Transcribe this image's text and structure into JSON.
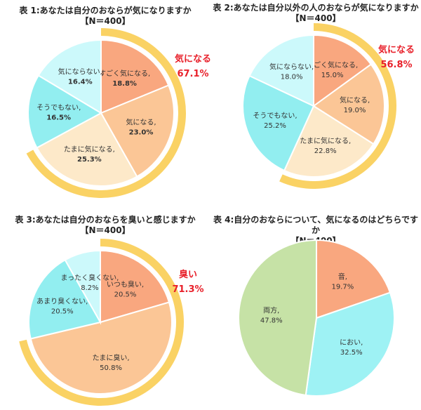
{
  "colors": {
    "ring": "#FAD264",
    "highlight_text": "#E8202A",
    "label_text": "#333333"
  },
  "chart_data": [
    {
      "type": "pie",
      "title": "表 1:あなたは自分のおならが気になりますか",
      "subtitle": "【N＝400】",
      "slices": [
        {
          "label": "すごく気になる",
          "value": 18.8,
          "color": "#F9A77F"
        },
        {
          "label": "気になる",
          "value": 23.0,
          "color": "#FBC696"
        },
        {
          "label": "たまに気になる",
          "value": 25.3,
          "color": "#FDE9C9"
        },
        {
          "label": "そうでもない",
          "value": 16.5,
          "color": "#92EEF0"
        },
        {
          "label": "気にならない",
          "value": 16.4,
          "color": "#CCF9FB"
        }
      ],
      "highlight": {
        "label": "気になる",
        "value": "67.1%"
      }
    },
    {
      "type": "pie",
      "title": "表 2:あなたは自分以外の人のおならが気になりますか",
      "subtitle": "【N＝400】",
      "slices": [
        {
          "label": "すごく気になる",
          "value": 15.0,
          "color": "#F9A77F"
        },
        {
          "label": "気になる",
          "value": 19.0,
          "color": "#FBC696"
        },
        {
          "label": "たまに気になる",
          "value": 22.8,
          "color": "#FDE9C9"
        },
        {
          "label": "そうでもない",
          "value": 25.2,
          "color": "#92EEF0"
        },
        {
          "label": "気にならない",
          "value": 18.0,
          "color": "#CCF9FB"
        }
      ],
      "highlight": {
        "label": "気になる",
        "value": "56.8%"
      }
    },
    {
      "type": "pie",
      "title": "表 3:あなたは自分のおならを臭いと感じますか",
      "subtitle": "【N＝400】",
      "slices": [
        {
          "label": "いつも臭い",
          "value": 20.5,
          "color": "#F9A77F"
        },
        {
          "label": "たまに臭い",
          "value": 50.8,
          "color": "#FBC696"
        },
        {
          "label": "あまり臭くない",
          "value": 20.5,
          "color": "#92EEF0"
        },
        {
          "label": "まったく臭くない",
          "value": 8.2,
          "color": "#CCF9FB"
        }
      ],
      "highlight": {
        "label": "臭い",
        "value": "71.3%"
      }
    },
    {
      "type": "pie",
      "title": "表 4:自分のおならについて、気になるのはどちらですか",
      "subtitle": "【N＝400】",
      "slices": [
        {
          "label": "音",
          "value": 19.7,
          "color": "#F9A77F"
        },
        {
          "label": "におい",
          "value": 32.5,
          "color": "#9EF2F4"
        },
        {
          "label": "両方",
          "value": 47.8,
          "color": "#C6E2A6"
        }
      ]
    }
  ]
}
